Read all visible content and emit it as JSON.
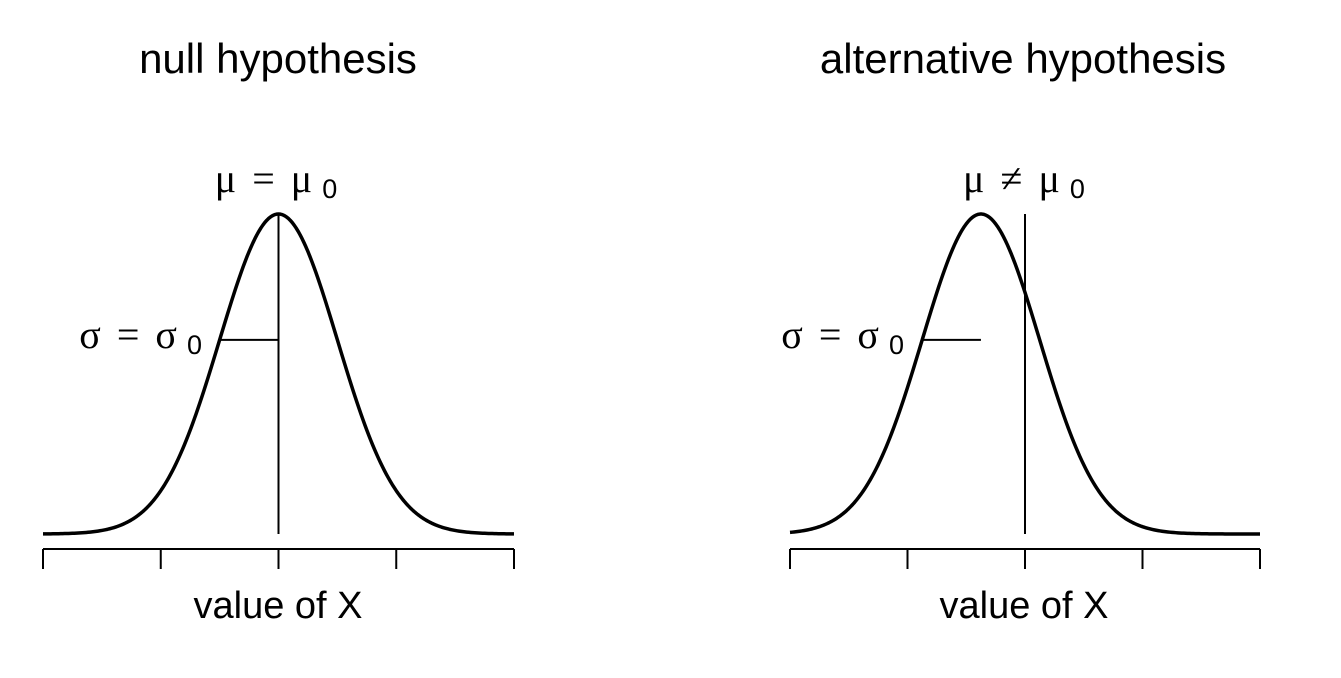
{
  "chart_data": [
    {
      "type": "line",
      "title": "null hypothesis",
      "xlabel": "value of X",
      "ylabel": "",
      "mean_annotation": {
        "symbol": "μ",
        "relation": "=",
        "ref": "μ",
        "subscript": "0"
      },
      "sd_annotation": {
        "symbol": "σ",
        "relation": "=",
        "ref": "σ",
        "subscript": "0"
      },
      "distribution": {
        "kind": "normal",
        "mean": 0,
        "sd": 1
      },
      "reference_x": 0,
      "xlim": [
        -4,
        4
      ],
      "xticks": [
        -4,
        -2,
        0,
        2,
        4
      ],
      "show_tick_labels": false,
      "grid": false
    },
    {
      "type": "line",
      "title": "alternative hypothesis",
      "xlabel": "value of X",
      "ylabel": "",
      "mean_annotation": {
        "symbol": "μ",
        "relation": "≠",
        "ref": "μ",
        "subscript": "0"
      },
      "sd_annotation": {
        "symbol": "σ",
        "relation": "=",
        "ref": "σ",
        "subscript": "0"
      },
      "distribution": {
        "kind": "normal",
        "mean": -0.75,
        "sd": 1
      },
      "reference_x": 0,
      "xlim": [
        -4,
        4
      ],
      "xticks": [
        -4,
        -2,
        0,
        2,
        4
      ],
      "show_tick_labels": false,
      "grid": false
    }
  ]
}
